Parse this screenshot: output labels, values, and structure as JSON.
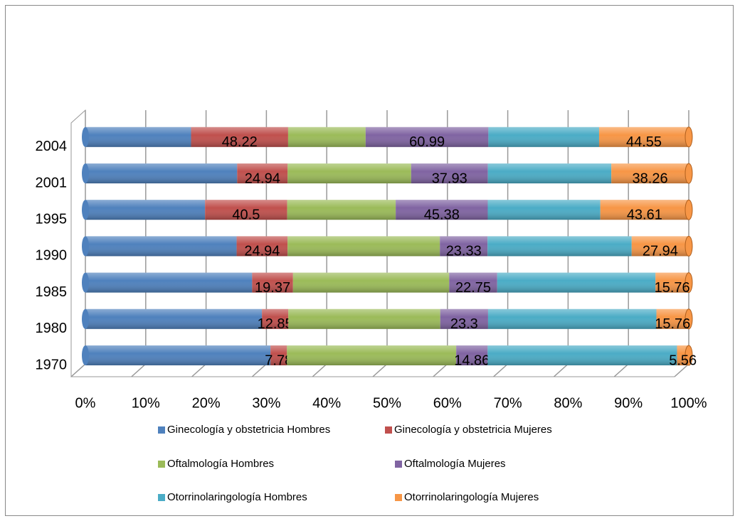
{
  "chart_data": {
    "type": "bar",
    "orientation": "horizontal",
    "stacking": "percent",
    "categories": [
      "1970",
      "1980",
      "1985",
      "1990",
      "1995",
      "2001",
      "2004"
    ],
    "series": [
      {
        "name": "Ginecología y obstetricia Hombres",
        "color": "#4f81bd",
        "values": [
          87.5,
          86,
          79,
          74,
          59,
          75,
          52.5
        ]
      },
      {
        "name": "Ginecología y obstetricia Mujeres",
        "color": "#c0504d",
        "values": [
          7.78,
          12.85,
          19.37,
          24.94,
          40.5,
          24.94,
          48.22
        ]
      },
      {
        "name": "Oftalmología Hombres",
        "color": "#9bbb59",
        "values": [
          80,
          74,
          74,
          74.5,
          53.5,
          61,
          38.5
        ]
      },
      {
        "name": "Oftalmología Mujeres",
        "color": "#8064a2",
        "values": [
          14.86,
          23.3,
          22.75,
          23.33,
          45.38,
          37.93,
          60.99
        ]
      },
      {
        "name": "Otorrinolaringología Hombres",
        "color": "#4bacc6",
        "values": [
          89.5,
          82,
          75,
          70.5,
          55.5,
          61,
          55
        ]
      },
      {
        "name": "Otorrinolaringología Mujeres",
        "color": "#f79646",
        "values": [
          5.56,
          15.76,
          15.76,
          27.94,
          43.61,
          38.26,
          44.55
        ]
      }
    ],
    "labeled_series": [
      1,
      3,
      5
    ],
    "xlim": [
      0,
      100
    ],
    "xticks": [
      {
        "value": 0,
        "label": "0%"
      },
      {
        "value": 10,
        "label": "10%"
      },
      {
        "value": 20,
        "label": "20%"
      },
      {
        "value": 30,
        "label": "30%"
      },
      {
        "value": 40,
        "label": "40%"
      },
      {
        "value": 50,
        "label": "50%"
      },
      {
        "value": 60,
        "label": "60%"
      },
      {
        "value": 70,
        "label": "70%"
      },
      {
        "value": 80,
        "label": "80%"
      },
      {
        "value": 90,
        "label": "90%"
      },
      {
        "value": 100,
        "label": "100%"
      }
    ],
    "grid": true,
    "legend": "bottom"
  }
}
